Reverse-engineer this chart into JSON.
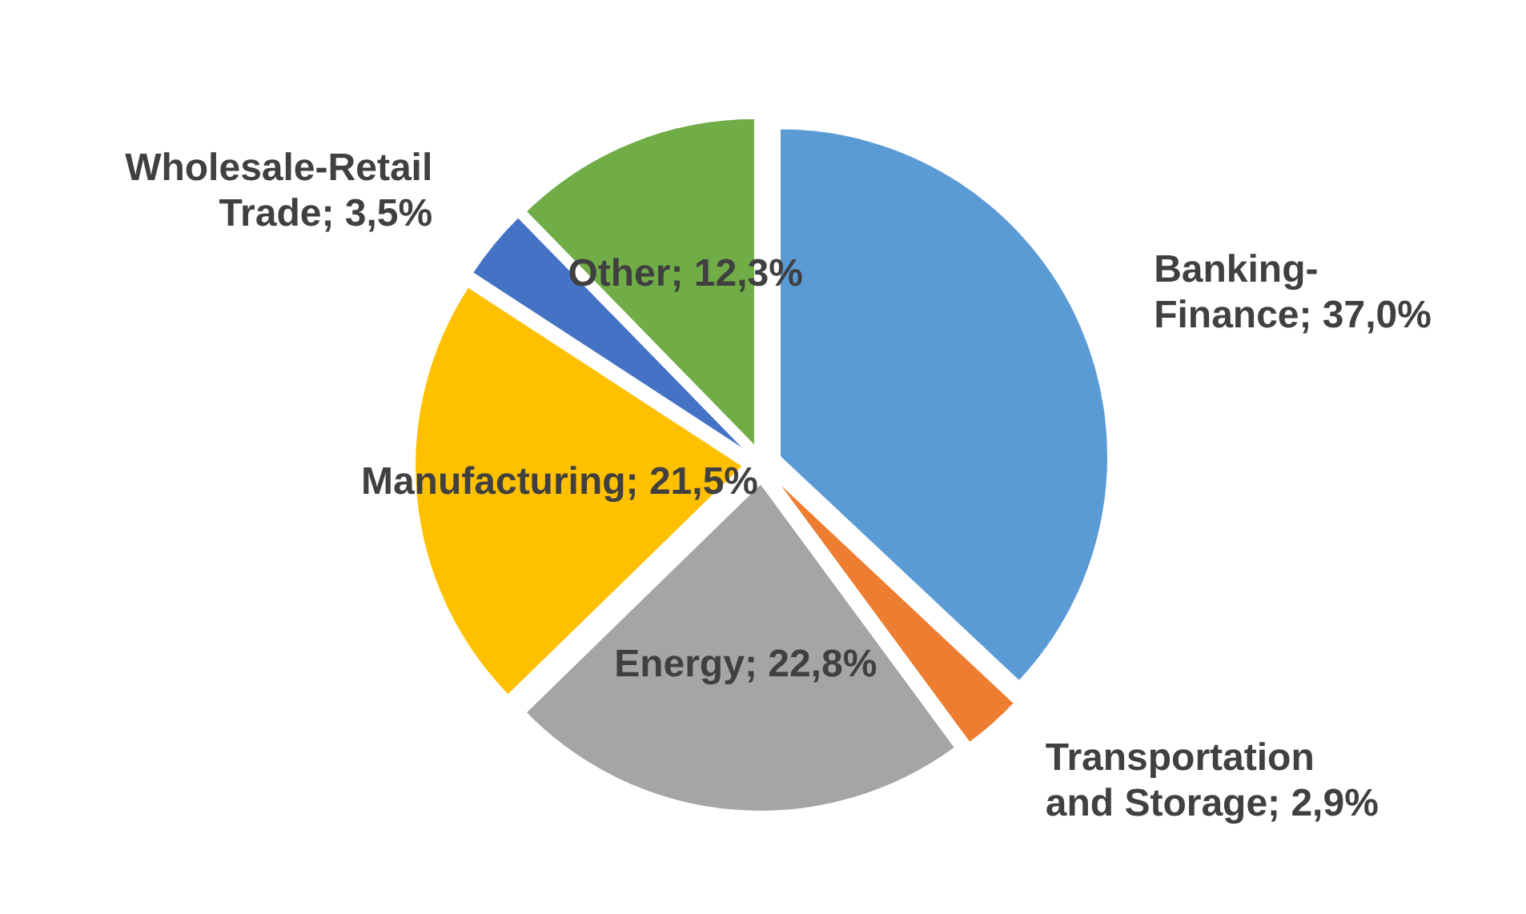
{
  "chart_data": {
    "type": "pie",
    "categories": [
      "Banking-Finance",
      "Transportation and Storage",
      "Energy",
      "Manufacturing",
      "Wholesale-Retail Trade",
      "Other"
    ],
    "values": [
      37.0,
      2.9,
      22.8,
      21.5,
      3.5,
      12.3
    ],
    "colors": [
      "#5b9bd5",
      "#ed7d31",
      "#a5a5a5",
      "#ffc000",
      "#4472c4",
      "#70ad47"
    ],
    "value_labels": [
      "37,0%",
      "2,9%",
      "22,8%",
      "21,5%",
      "3,5%",
      "12,3%"
    ]
  }
}
